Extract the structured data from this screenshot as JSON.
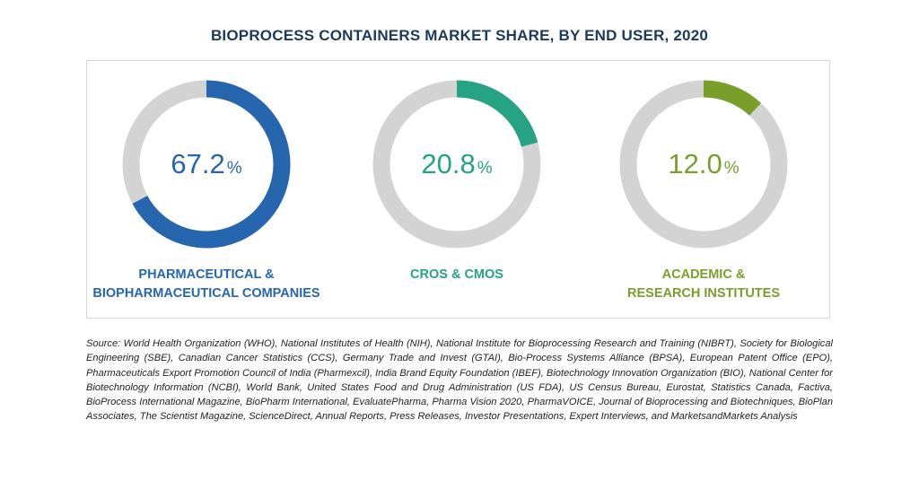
{
  "title": "BIOPROCESS CONTAINERS MARKET SHARE, BY END USER, 2020",
  "chart_data": [
    {
      "type": "pie",
      "variant": "donut",
      "value": 67.2,
      "value_text": "67.2",
      "unit": "%",
      "label_lines": [
        "PHARMACEUTICAL &",
        "BIOPHARMACEUTICAL COMPANIES"
      ],
      "color": "#2566ae",
      "track_color": "#d3d3d3"
    },
    {
      "type": "pie",
      "variant": "donut",
      "value": 20.8,
      "value_text": "20.8",
      "unit": "%",
      "label_lines": [
        "CROS & CMOS"
      ],
      "color": "#25a383",
      "track_color": "#d3d3d3"
    },
    {
      "type": "pie",
      "variant": "donut",
      "value": 12.0,
      "value_text": "12.0",
      "unit": "%",
      "label_lines": [
        "ACADEMIC &",
        "RESEARCH INSTITUTES"
      ],
      "color": "#7a9e2a",
      "track_color": "#d3d3d3"
    }
  ],
  "source": "Source: World Health Organization (WHO), National Institutes of Health (NIH), National Institute for Bioprocessing Research and Training (NIBRT), Society for Biological Engineering (SBE), Canadian Cancer Statistics (CCS), Germany Trade and Invest (GTAI), Bio-Process Systems Alliance (BPSA), European Patent Office (EPO), Pharmaceuticals Export Promotion Council of India (Pharmexcil), India Brand Equity Foundation (IBEF), Biotechnology Innovation Organization (BIO), National Center for Biotechnology Information (NCBI), World Bank, United States Food and Drug Administration (US FDA), US Census Bureau, Eurostat, Statistics Canada, Factiva, BioProcess International Magazine, BioPharm International, EvaluatePharma, Pharma Vision 2020, PharmaVOICE, Journal of Bioprocessing and Biotechniques, BioPlan Associates, The Scientist Magazine, ScienceDirect, Annual Reports, Press Releases, Investor Presentations, Expert Interviews, and MarketsandMarkets Analysis"
}
